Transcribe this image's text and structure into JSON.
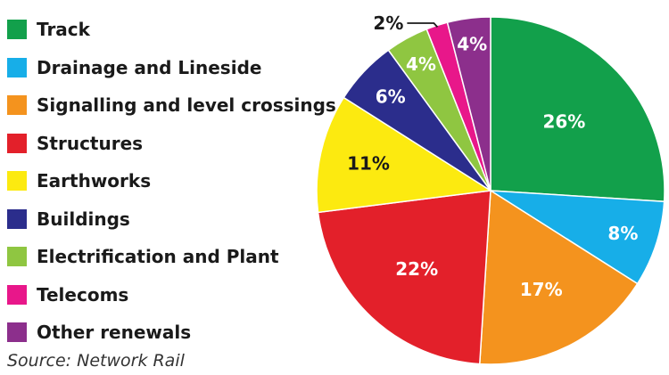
{
  "chart_data": {
    "type": "pie",
    "title": "",
    "categories": [
      "Track",
      "Drainage and Lineside",
      "Signalling and level crossings",
      "Structures",
      "Earthworks",
      "Buildings",
      "Electrification and Plant",
      "Telecoms",
      "Other renewals"
    ],
    "values": [
      26,
      8,
      17,
      22,
      11,
      6,
      4,
      2,
      4
    ],
    "value_labels": [
      "26%",
      "8%",
      "17%",
      "22%",
      "11%",
      "6%",
      "4%",
      "2%",
      "4%"
    ],
    "colors": [
      "#12a04b",
      "#17aee8",
      "#f4931e",
      "#e3202a",
      "#fcea10",
      "#2b2d8c",
      "#8fc641",
      "#e8178a",
      "#8c2f8c"
    ],
    "label_colors": [
      "#ffffff",
      "#ffffff",
      "#ffffff",
      "#ffffff",
      "#1a1a1a",
      "#ffffff",
      "#ffffff",
      "#1a1a1a",
      "#ffffff"
    ],
    "legend_position": "left",
    "start_angle_deg": 0,
    "direction": "clockwise",
    "source": "Source: Network Rail"
  }
}
